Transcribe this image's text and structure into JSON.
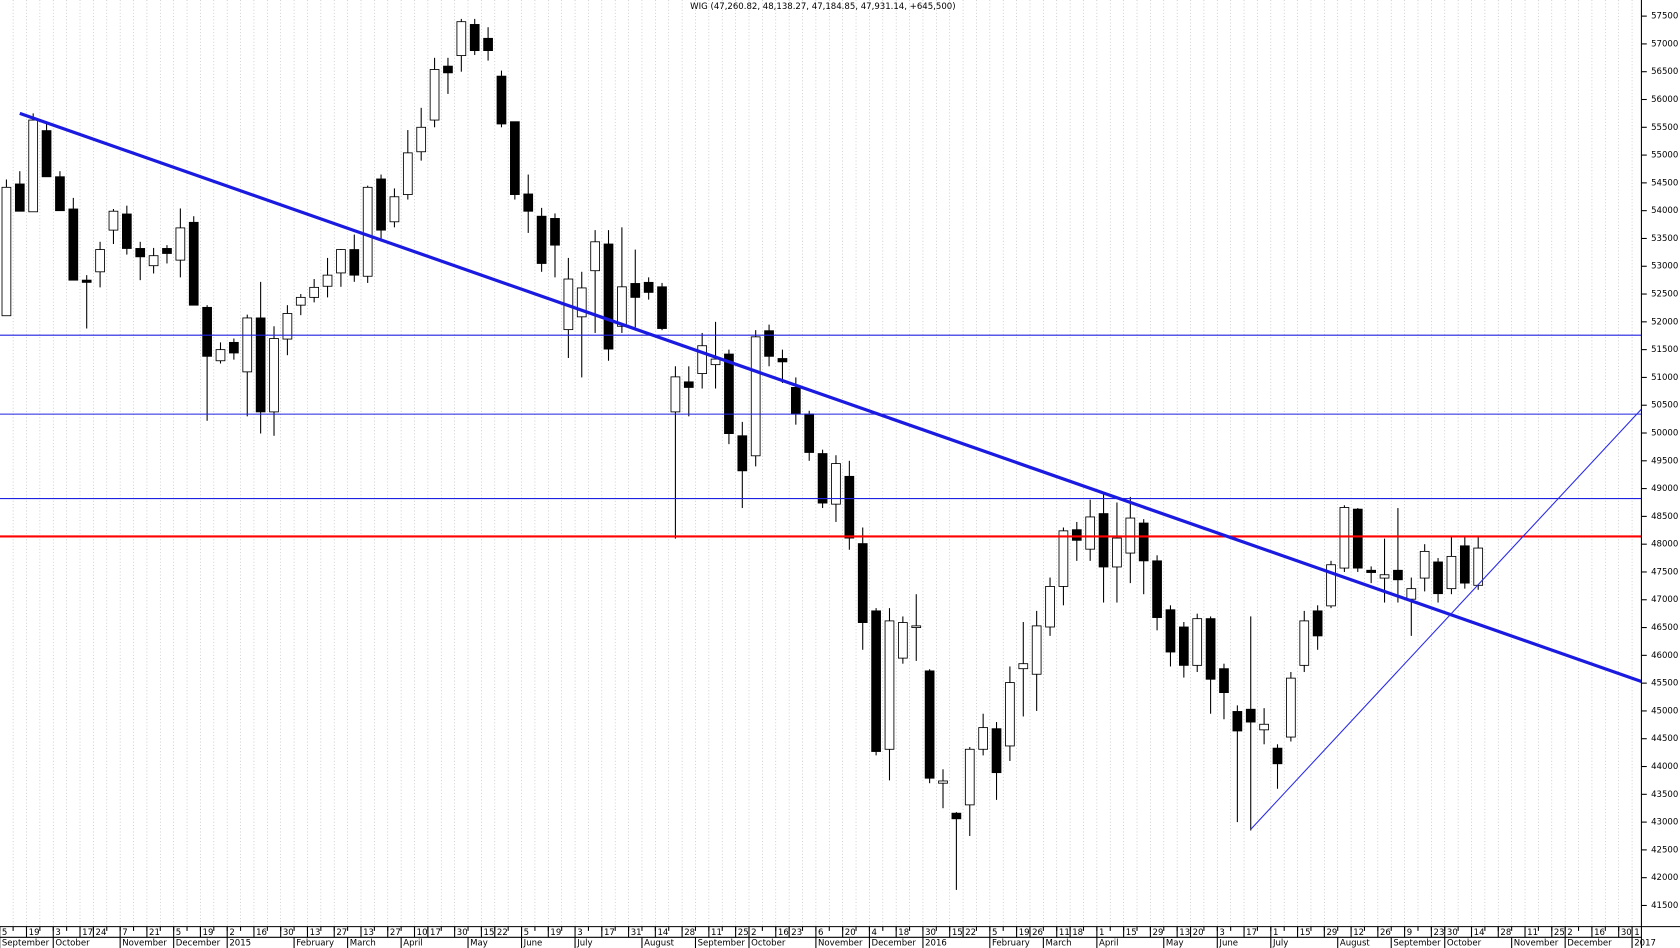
{
  "chart_data": {
    "type": "candlestick",
    "title": "WIG (47,260.82, 48,138.27, 47,184.85, 47,931.14, +645,500)",
    "categories": [
      "5",
      null,
      "19",
      null,
      "3",
      null,
      "17",
      "24",
      null,
      "7",
      null,
      "21",
      null,
      "5",
      null,
      "19",
      null,
      "2",
      null,
      "16",
      null,
      "30",
      null,
      "13",
      null,
      "27",
      null,
      "13",
      null,
      "27",
      null,
      "10",
      "17",
      null,
      "30",
      null,
      "15",
      "22",
      null,
      "5",
      null,
      "19",
      null,
      "3",
      null,
      "17",
      null,
      "31",
      null,
      "14",
      null,
      "28",
      null,
      "11",
      null,
      "25",
      "2",
      null,
      "16",
      "23",
      null,
      "6",
      null,
      "20",
      null,
      "4",
      null,
      "18",
      null,
      "30",
      null,
      "15",
      "22",
      null,
      "5",
      null,
      "19",
      "26",
      null,
      "11",
      "18",
      null,
      "1",
      null,
      "15",
      null,
      "29",
      null,
      "13",
      "20",
      null,
      "3",
      null,
      "17",
      null,
      "1",
      null,
      "15",
      null,
      "29",
      null,
      "12",
      null,
      "26",
      null,
      "9",
      null,
      "23",
      "30",
      null,
      "14",
      null,
      "28",
      null,
      "11",
      null,
      "25",
      "2",
      null,
      "16",
      null,
      "30",
      "1"
    ],
    "month_labels": [
      "September",
      null,
      null,
      null,
      "October",
      null,
      null,
      null,
      null,
      "November",
      null,
      null,
      null,
      "December",
      null,
      null,
      null,
      "2015",
      null,
      null,
      null,
      null,
      "February",
      null,
      null,
      null,
      "March",
      null,
      null,
      null,
      "April",
      null,
      null,
      null,
      null,
      "May",
      null,
      null,
      null,
      "June",
      null,
      null,
      null,
      "July",
      null,
      null,
      null,
      null,
      "August",
      null,
      null,
      null,
      "September",
      null,
      null,
      null,
      "October",
      null,
      null,
      null,
      null,
      "November",
      null,
      null,
      null,
      "December",
      null,
      null,
      null,
      "2016",
      null,
      null,
      null,
      null,
      "February",
      null,
      null,
      null,
      "March",
      null,
      null,
      null,
      "April",
      null,
      null,
      null,
      null,
      "May",
      null,
      null,
      null,
      "June",
      null,
      null,
      null,
      "July",
      null,
      null,
      null,
      null,
      "August",
      null,
      null,
      null,
      "September",
      null,
      null,
      null,
      "October",
      null,
      null,
      null,
      null,
      "November",
      null,
      null,
      null,
      "December",
      null,
      null,
      null,
      null,
      "2017"
    ],
    "open": [
      52110,
      54480,
      53980,
      55440,
      54610,
      54030,
      52750,
      52900,
      53650,
      53940,
      53320,
      53010,
      53320,
      53110,
      53790,
      52260,
      51300,
      51630,
      51100,
      52070,
      50380,
      51690,
      52300,
      52440,
      52640,
      52880,
      53300,
      52820,
      54570,
      53800,
      54290,
      55060,
      55630,
      56600,
      56790,
      57350,
      57100,
      56420,
      55600,
      54300,
      53900,
      53860,
      51860,
      52090,
      52920,
      53400,
      51920,
      52690,
      52710,
      52630,
      50380,
      50920,
      51070,
      51230,
      51420,
      49950,
      49590,
      51840,
      51340,
      50820,
      50340,
      49630,
      48720,
      49220,
      48010,
      46800,
      44310,
      45950,
      46500,
      45720,
      43700,
      43160,
      43310,
      44310,
      44680,
      44370,
      45760,
      45660,
      46510,
      47240,
      48260,
      47910,
      48550,
      47590,
      47840,
      48380,
      47700,
      46820,
      46510,
      45820,
      46660,
      45760,
      44990,
      45030,
      44660,
      44330,
      44530,
      45820,
      46800,
      46890,
      47570,
      48630,
      47530,
      47390,
      47530,
      47010,
      47390,
      47680,
      47200,
      47970,
      47260,
      null,
      null,
      null,
      null,
      null,
      null,
      null,
      null,
      null,
      null,
      null,
      null
    ],
    "high": [
      54560,
      54710,
      55750,
      55560,
      54710,
      54230,
      52840,
      53440,
      54030,
      54090,
      53440,
      53330,
      53380,
      54040,
      53900,
      52300,
      51630,
      51700,
      52130,
      52720,
      51920,
      52300,
      52500,
      52770,
      53150,
      53310,
      53570,
      54450,
      54650,
      54400,
      55450,
      55850,
      56750,
      56750,
      57450,
      57450,
      57300,
      56520,
      55600,
      54650,
      54050,
      53950,
      53150,
      52900,
      53650,
      53650,
      53700,
      53300,
      52800,
      52700,
      51200,
      51200,
      51800,
      52000,
      51500,
      50200,
      51850,
      51950,
      51500,
      51000,
      50400,
      49700,
      49600,
      49500,
      48300,
      46850,
      46850,
      46700,
      47100,
      45750,
      43950,
      43180,
      44350,
      44950,
      44800,
      45800,
      46600,
      46800,
      47400,
      48300,
      48400,
      48800,
      48900,
      48750,
      48850,
      48450,
      47800,
      46900,
      46600,
      46750,
      46700,
      45850,
      45100,
      46700,
      45050,
      44400,
      45700,
      46800,
      46900,
      47700,
      48700,
      48650,
      47600,
      48100,
      48650,
      47400,
      48000,
      47750,
      48150,
      48150,
      48140,
      null,
      null,
      null,
      null,
      null,
      null,
      null,
      null,
      null,
      null,
      null,
      null
    ],
    "low": [
      52110,
      53990,
      53980,
      54610,
      54000,
      52750,
      51880,
      52620,
      53400,
      53210,
      52750,
      52870,
      53050,
      52800,
      52300,
      50220,
      51250,
      51320,
      50300,
      49990,
      49950,
      51400,
      52120,
      52350,
      52440,
      52630,
      52720,
      52700,
      53500,
      53700,
      54200,
      54900,
      55500,
      56100,
      56500,
      56800,
      56700,
      55500,
      54200,
      53600,
      52900,
      52800,
      51350,
      51000,
      51800,
      51300,
      51800,
      51900,
      52400,
      51850,
      48100,
      50300,
      50800,
      50800,
      49800,
      48650,
      49400,
      51200,
      50900,
      50150,
      49500,
      48650,
      48400,
      47900,
      46100,
      44200,
      43750,
      45850,
      45900,
      43700,
      43250,
      41780,
      42750,
      44200,
      43400,
      44100,
      44900,
      45000,
      46350,
      46900,
      47700,
      47700,
      46950,
      46950,
      47300,
      47100,
      46450,
      45800,
      45600,
      45700,
      44950,
      44850,
      43000,
      42850,
      44400,
      43600,
      44450,
      45700,
      46100,
      46850,
      47500,
      47500,
      47300,
      46950,
      46950,
      46350,
      47150,
      46950,
      47100,
      47200,
      47180,
      null,
      null,
      null,
      null,
      null,
      null,
      null,
      null,
      null,
      null,
      null,
      null
    ],
    "close": [
      54420,
      53990,
      55630,
      54610,
      54000,
      52750,
      52710,
      53300,
      53990,
      53320,
      53170,
      53190,
      53230,
      53690,
      52300,
      51380,
      51500,
      51440,
      52070,
      50380,
      51700,
      52150,
      52440,
      52620,
      52840,
      53300,
      52840,
      54420,
      53650,
      54250,
      55040,
      55500,
      56540,
      56480,
      57400,
      56880,
      56880,
      55560,
      54290,
      53990,
      53050,
      53380,
      52770,
      52610,
      53440,
      51510,
      52630,
      52440,
      52530,
      51880,
      51010,
      50820,
      51570,
      51330,
      49990,
      49320,
      51730,
      51380,
      51280,
      50340,
      49650,
      48740,
      49450,
      48110,
      46590,
      44270,
      46620,
      46590,
      46530,
      43790,
      43740,
      43060,
      44310,
      44700,
      43890,
      45510,
      45850,
      46530,
      47240,
      48240,
      48070,
      48490,
      47590,
      48110,
      48470,
      47700,
      46680,
      46060,
      45820,
      46660,
      45570,
      45330,
      44640,
      44800,
      44760,
      44050,
      45590,
      46620,
      46350,
      47630,
      48660,
      47570,
      47490,
      47450,
      47360,
      47200,
      47870,
      47110,
      47780,
      47300,
      47930,
      null,
      null,
      null,
      null,
      null,
      null,
      null,
      null,
      null,
      null,
      null,
      null
    ],
    "up_color": "#ffffff",
    "down_color": "#000000",
    "xlim": [
      -0.48,
      122.2
    ],
    "ylim": [
      41120,
      57790
    ],
    "yticks": [
      41500,
      42000,
      42500,
      43000,
      43500,
      44000,
      44500,
      45000,
      45500,
      46000,
      46500,
      47000,
      47500,
      48000,
      48500,
      49000,
      49500,
      50000,
      50500,
      51000,
      51500,
      52000,
      52500,
      53000,
      53500,
      54000,
      54500,
      55000,
      55500,
      56000,
      56500,
      57000,
      57500
    ],
    "week_grid": true,
    "hlines": [
      {
        "value": 51760,
        "color": "#2020e0"
      },
      {
        "value": 50340,
        "color": "#2020e0"
      },
      {
        "value": 48820,
        "color": "#2020e0"
      },
      {
        "value": 48140,
        "color": "#ff0000"
      }
    ],
    "trendlines": [
      {
        "x": [
          1,
          122.2
        ],
        "values": [
          55750,
          45530
        ],
        "color": "#1a1ae0"
      },
      {
        "x": [
          93,
          122.2
        ],
        "values": [
          42870,
          50430
        ],
        "color": "#2a2ae8"
      }
    ]
  }
}
